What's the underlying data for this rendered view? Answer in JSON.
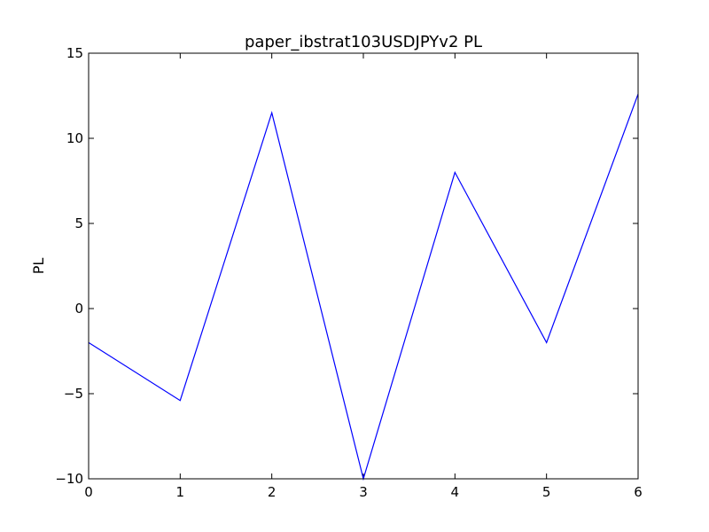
{
  "chart_data": {
    "type": "line",
    "title": "paper_ibstrat103USDJPYv2 PL",
    "xlabel": "",
    "ylabel": "PL",
    "xlim": [
      0,
      6
    ],
    "ylim": [
      -10,
      15
    ],
    "x_ticks": [
      0,
      1,
      2,
      3,
      4,
      5,
      6
    ],
    "y_ticks": [
      -10,
      -5,
      0,
      5,
      10,
      15
    ],
    "x_tick_labels": [
      "0",
      "1",
      "2",
      "3",
      "4",
      "5",
      "6"
    ],
    "y_tick_labels": [
      "−10",
      "−5",
      "0",
      "5",
      "10",
      "15"
    ],
    "grid": false,
    "series": [
      {
        "x": [
          0,
          1,
          2,
          3,
          4,
          5,
          6
        ],
        "values": [
          -2.0,
          -5.4,
          11.5,
          -10.0,
          8.0,
          -2.0,
          12.6
        ],
        "color": "#0000ff"
      }
    ]
  }
}
